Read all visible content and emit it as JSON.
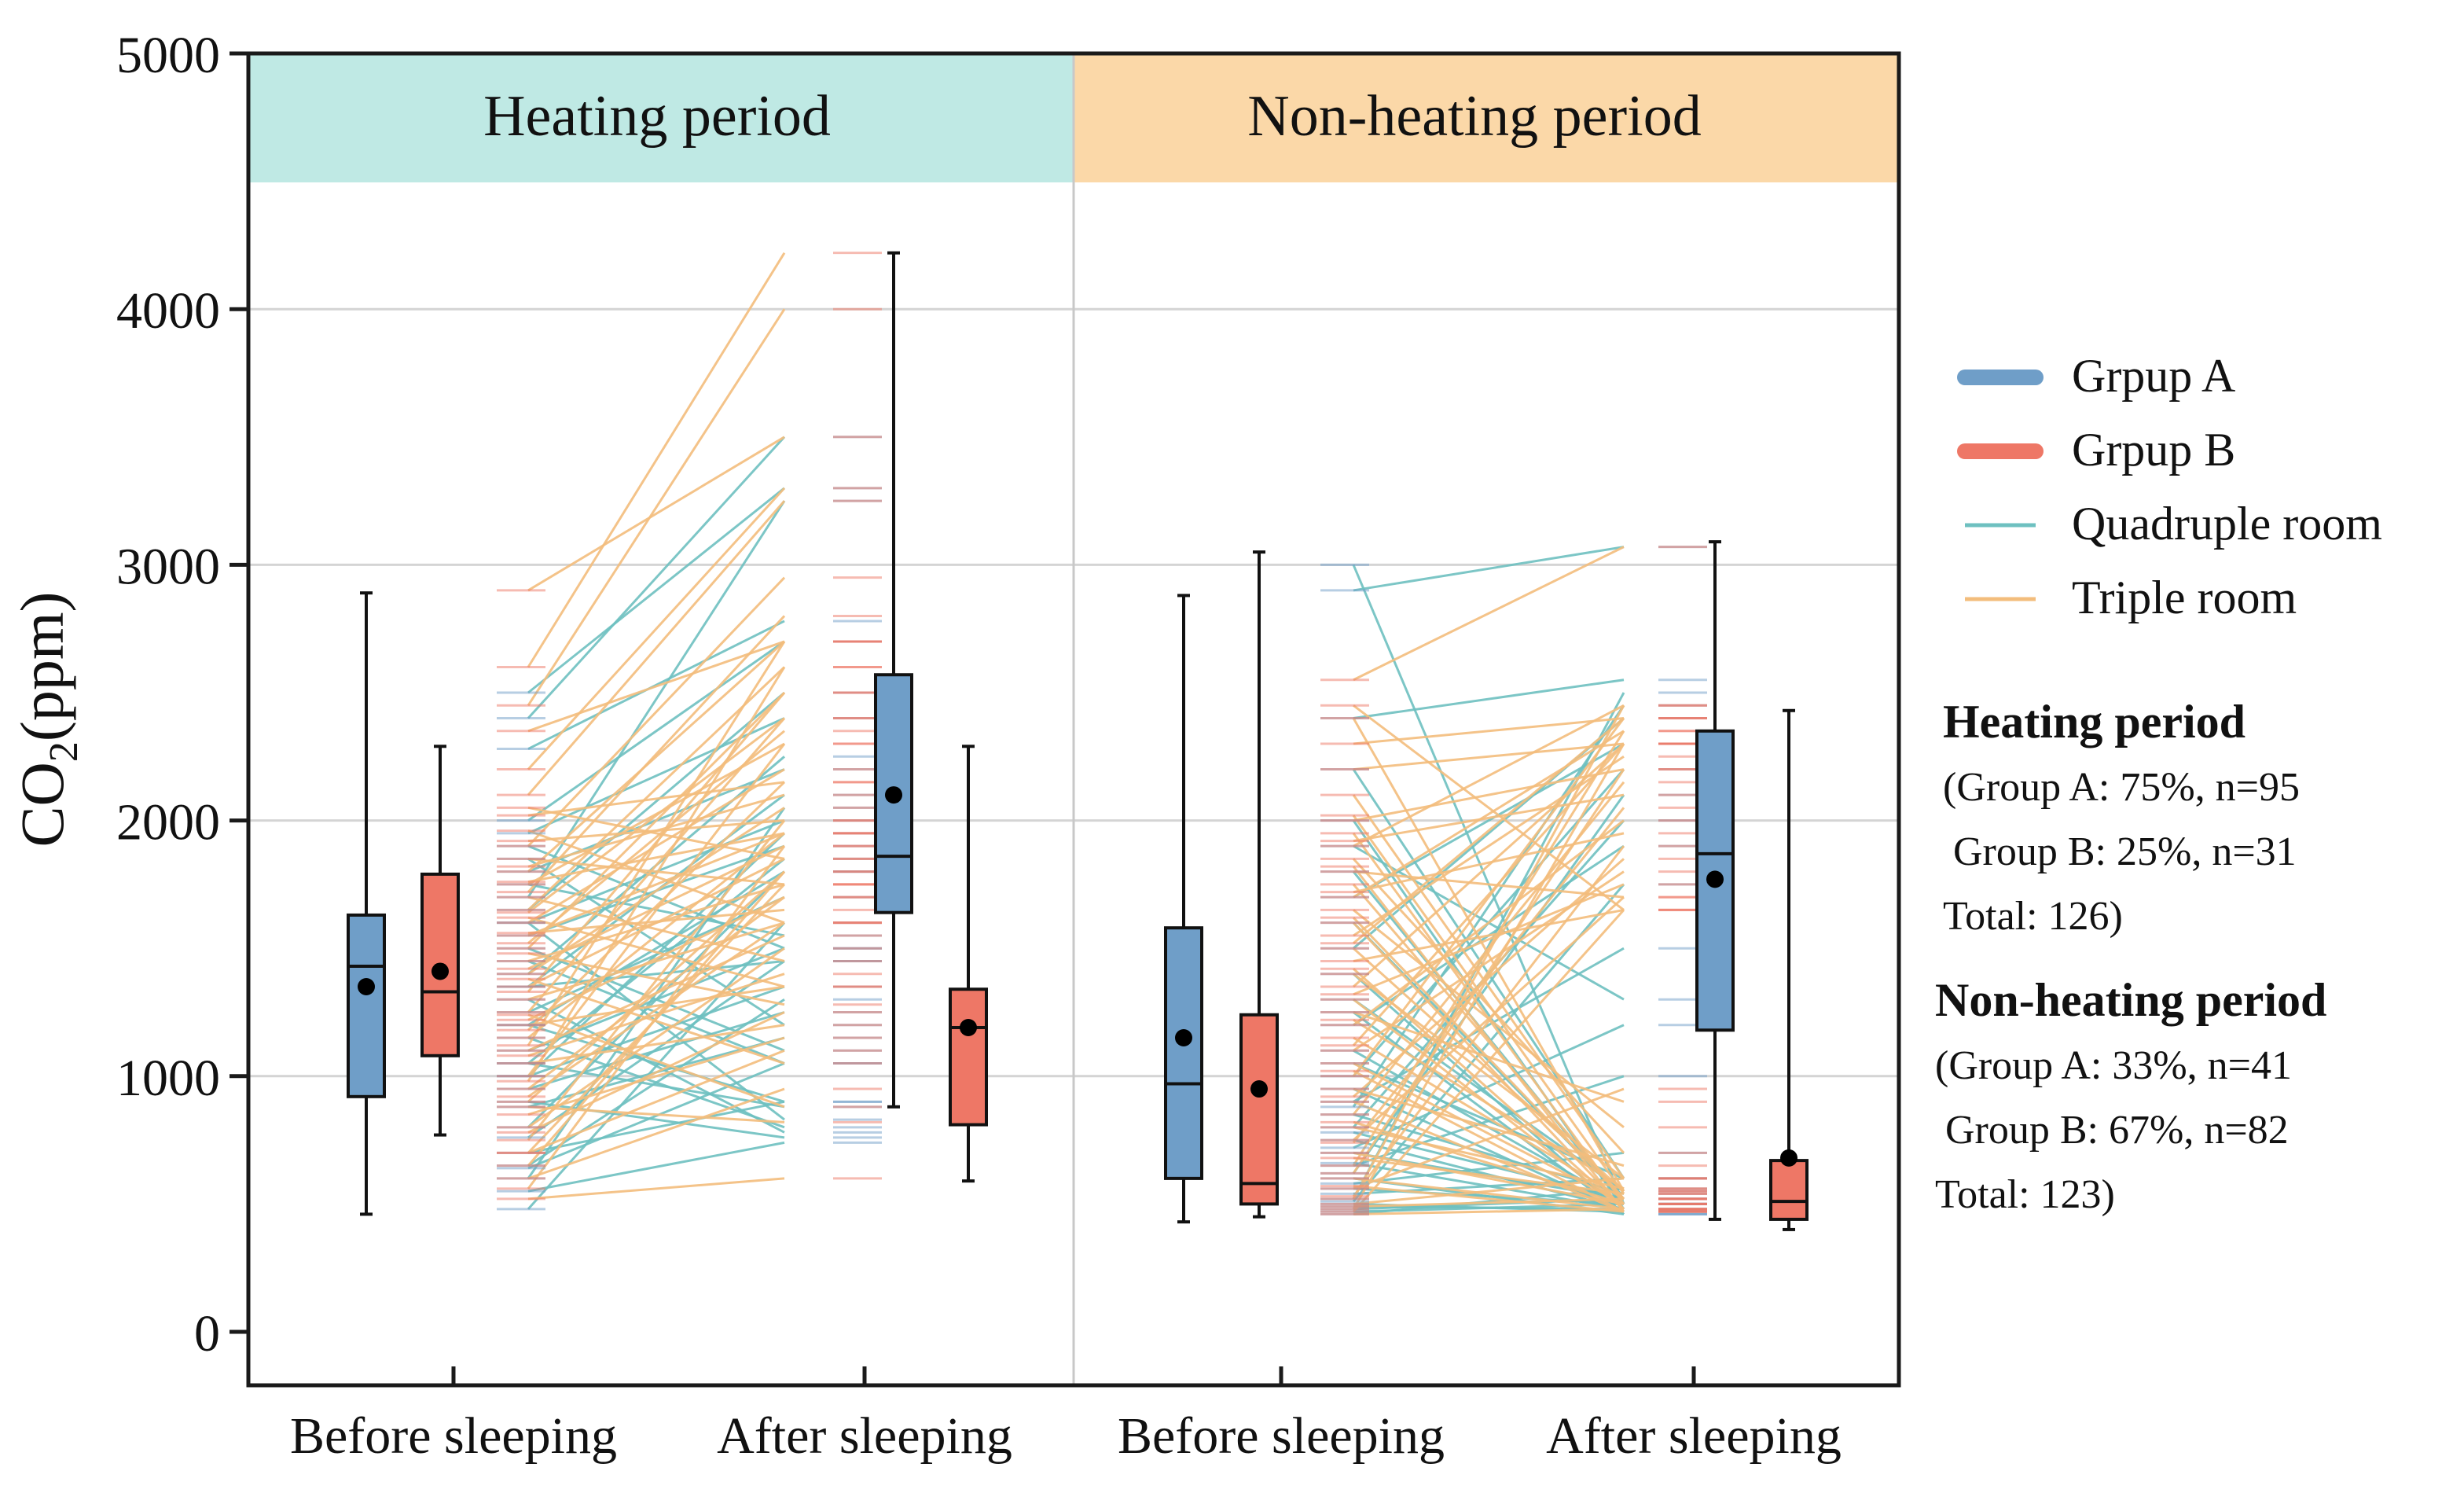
{
  "chart_data": {
    "type": "box",
    "ylabel_main": "CO",
    "ylabel_sub": "2",
    "ylabel_unit": "(ppm)",
    "ylim": [
      0,
      5000
    ],
    "yticks": [
      "0",
      "1000",
      "2000",
      "3000",
      "4000",
      "5000"
    ],
    "grid": true,
    "colors": {
      "group_a": "#6f9ec8",
      "group_b": "#ee7766",
      "quadruple": "#6ec0c0",
      "triple": "#f3bd7c",
      "heating_band": "#bfe9e4",
      "nonheating_band": "#fbd8a8",
      "mean_marker": "#000000"
    },
    "panels": [
      {
        "name": "Heating period",
        "categories": [
          "Before sleeping",
          "After sleeping"
        ],
        "boxes": [
          {
            "category": "Before sleeping",
            "group": "Grpup A",
            "min": 460,
            "q1": 920,
            "median": 1430,
            "q3": 1630,
            "max": 2890,
            "mean": 1350
          },
          {
            "category": "Before sleeping",
            "group": "Grpup B",
            "min": 770,
            "q1": 1080,
            "median": 1330,
            "q3": 1790,
            "max": 2290,
            "mean": 1410
          },
          {
            "category": "After sleeping",
            "group": "Grpup A",
            "min": 880,
            "q1": 1640,
            "median": 1860,
            "q3": 2570,
            "max": 4220,
            "mean": 2100
          },
          {
            "category": "After sleeping",
            "group": "Grpup B",
            "min": 590,
            "q1": 810,
            "median": 1190,
            "q3": 1340,
            "max": 2290,
            "mean": 1190
          }
        ],
        "paired_lines": {
          "quadruple": [
            [
              2280,
              2780
            ],
            [
              1700,
              3250
            ],
            [
              1900,
              1500
            ],
            [
              1500,
              1100
            ],
            [
              1300,
              780
            ],
            [
              1200,
              1800
            ],
            [
              1000,
              1350
            ],
            [
              800,
              1800
            ],
            [
              640,
              1050
            ],
            [
              600,
              2050
            ],
            [
              480,
              1600
            ],
            [
              1400,
              2250
            ],
            [
              1600,
              830
            ],
            [
              900,
              760
            ],
            [
              1100,
              1500
            ],
            [
              2500,
              3300
            ],
            [
              1850,
              1200
            ],
            [
              700,
              900
            ],
            [
              1750,
              1550
            ],
            [
              1350,
              2100
            ],
            [
              1050,
              880
            ],
            [
              1550,
              1900
            ],
            [
              1250,
              1700
            ],
            [
              950,
              1250
            ],
            [
              760,
              1450
            ],
            [
              1650,
              2500
            ],
            [
              2000,
              2700
            ],
            [
              1450,
              1050
            ],
            [
              1150,
              800
            ],
            [
              880,
              1150
            ],
            [
              2400,
              3500
            ],
            [
              1800,
              2200
            ],
            [
              1050,
              1850
            ],
            [
              1200,
              900
            ],
            [
              550,
              740
            ],
            [
              1950,
              2400
            ],
            [
              650,
              1300
            ],
            [
              1600,
              2000
            ],
            [
              1350,
              1450
            ],
            [
              1000,
              1950
            ]
          ],
          "triple": [
            [
              2600,
              4220
            ],
            [
              2900,
              3500
            ],
            [
              2450,
              4000
            ],
            [
              2100,
              3250
            ],
            [
              1900,
              2950
            ],
            [
              1800,
              2700
            ],
            [
              1750,
              2300
            ],
            [
              1700,
              1450
            ],
            [
              1650,
              2600
            ],
            [
              1600,
              2200
            ],
            [
              1550,
              1950
            ],
            [
              1500,
              2500
            ],
            [
              1450,
              1750
            ],
            [
              1400,
              2050
            ],
            [
              1350,
              1850
            ],
            [
              1300,
              1600
            ],
            [
              1250,
              2400
            ],
            [
              1200,
              1350
            ],
            [
              1150,
              1950
            ],
            [
              1100,
              1550
            ],
            [
              1050,
              1200
            ],
            [
              1000,
              2300
            ],
            [
              950,
              1700
            ],
            [
              900,
              1800
            ],
            [
              850,
              1150
            ],
            [
              800,
              1500
            ],
            [
              750,
              2000
            ],
            [
              700,
              1100
            ],
            [
              650,
              1800
            ],
            [
              600,
              950
            ],
            [
              560,
              1900
            ],
            [
              520,
              600
            ],
            [
              1850,
              1750
            ],
            [
              1960,
              1600
            ],
            [
              2050,
              1850
            ],
            [
              1480,
              1280
            ],
            [
              1620,
              1350
            ],
            [
              1720,
              2800
            ],
            [
              1820,
              2100
            ],
            [
              1560,
              1650
            ],
            [
              1380,
              1050
            ],
            [
              1180,
              2150
            ],
            [
              980,
              2600
            ],
            [
              880,
              820
            ],
            [
              780,
              1250
            ],
            [
              2200,
              3300
            ],
            [
              2350,
              2700
            ],
            [
              1920,
              2000
            ],
            [
              1640,
              2400
            ],
            [
              1420,
              1900
            ],
            [
              1220,
              1700
            ],
            [
              1080,
              1400
            ],
            [
              920,
              1600
            ],
            [
              700,
              1750
            ],
            [
              1760,
              1950
            ],
            [
              1330,
              2500
            ],
            [
              1240,
              880
            ],
            [
              1520,
              2350
            ],
            [
              2020,
              2150
            ],
            [
              1120,
              2700
            ]
          ]
        }
      },
      {
        "name": "Non-heating period",
        "categories": [
          "Before sleeping",
          "After sleeping"
        ],
        "boxes": [
          {
            "category": "Before sleeping",
            "group": "Grpup A",
            "min": 430,
            "q1": 600,
            "median": 970,
            "q3": 1580,
            "max": 2880,
            "mean": 1150
          },
          {
            "category": "Before sleeping",
            "group": "Grpup B",
            "min": 450,
            "q1": 500,
            "median": 580,
            "q3": 1240,
            "max": 3050,
            "mean": 950
          },
          {
            "category": "After sleeping",
            "group": "Grpup A",
            "min": 440,
            "q1": 1180,
            "median": 1870,
            "q3": 2350,
            "max": 3090,
            "mean": 1770
          },
          {
            "category": "After sleeping",
            "group": "Grpup B",
            "min": 400,
            "q1": 440,
            "median": 510,
            "q3": 670,
            "max": 2430,
            "mean": 680
          }
        ],
        "paired_lines": {
          "quadruple": [
            [
              2900,
              3070
            ],
            [
              3000,
              500
            ],
            [
              2400,
              2550
            ],
            [
              2200,
              600
            ],
            [
              2000,
              480
            ],
            [
              1900,
              1300
            ],
            [
              1800,
              500
            ],
            [
              1700,
              2300
            ],
            [
              1600,
              520
            ],
            [
              1500,
              2400
            ],
            [
              1400,
              460
            ],
            [
              1300,
              550
            ],
            [
              1200,
              1900
            ],
            [
              1100,
              500
            ],
            [
              1000,
              2200
            ],
            [
              950,
              470
            ],
            [
              900,
              1500
            ],
            [
              850,
              540
            ],
            [
              800,
              2000
            ],
            [
              750,
              480
            ],
            [
              700,
              520
            ],
            [
              650,
              1000
            ],
            [
              600,
              460
            ],
            [
              560,
              500
            ],
            [
              520,
              2500
            ],
            [
              500,
              470
            ],
            [
              480,
              520
            ],
            [
              460,
              560
            ],
            [
              470,
              500
            ],
            [
              490,
              480
            ],
            [
              510,
              1750
            ],
            [
              540,
              600
            ],
            [
              580,
              700
            ],
            [
              620,
              2100
            ],
            [
              660,
              480
            ],
            [
              720,
              1200
            ],
            [
              780,
              520
            ],
            [
              880,
              2450
            ],
            [
              1050,
              600
            ],
            [
              1250,
              460
            ]
          ],
          "triple": [
            [
              2550,
              3070
            ],
            [
              2450,
              1650
            ],
            [
              2400,
              550
            ],
            [
              2300,
              2400
            ],
            [
              2200,
              2300
            ],
            [
              2100,
              600
            ],
            [
              2000,
              2200
            ],
            [
              1950,
              500
            ],
            [
              1900,
              2450
            ],
            [
              1850,
              700
            ],
            [
              1800,
              1700
            ],
            [
              1750,
              520
            ],
            [
              1700,
              2350
            ],
            [
              1650,
              800
            ],
            [
              1600,
              480
            ],
            [
              1550,
              2250
            ],
            [
              1500,
              550
            ],
            [
              1450,
              1650
            ],
            [
              1400,
              600
            ],
            [
              1350,
              2300
            ],
            [
              1300,
              480
            ],
            [
              1250,
              900
            ],
            [
              1200,
              2000
            ],
            [
              1150,
              520
            ],
            [
              1100,
              1800
            ],
            [
              1050,
              500
            ],
            [
              1000,
              2400
            ],
            [
              950,
              650
            ],
            [
              900,
              470
            ],
            [
              850,
              2150
            ],
            [
              800,
              560
            ],
            [
              750,
              1700
            ],
            [
              700,
              500
            ],
            [
              650,
              2350
            ],
            [
              600,
              480
            ],
            [
              560,
              950
            ],
            [
              520,
              2450
            ],
            [
              490,
              520
            ],
            [
              470,
              1650
            ],
            [
              460,
              480
            ],
            [
              480,
              2300
            ],
            [
              500,
              600
            ],
            [
              530,
              1900
            ],
            [
              570,
              470
            ],
            [
              620,
              2200
            ],
            [
              680,
              540
            ],
            [
              740,
              2050
            ],
            [
              820,
              500
            ],
            [
              920,
              1850
            ],
            [
              1020,
              470
            ],
            [
              1120,
              2300
            ],
            [
              1220,
              560
            ],
            [
              1320,
              1750
            ],
            [
              1420,
              480
            ],
            [
              1520,
              2400
            ],
            [
              1620,
              520
            ],
            [
              1720,
              1950
            ],
            [
              1820,
              470
            ],
            [
              1920,
              2100
            ],
            [
              2020,
              540
            ]
          ]
        }
      }
    ]
  },
  "legend": {
    "items": [
      {
        "label": "Grpup A",
        "color": "#6f9ec8",
        "style": "thick"
      },
      {
        "label": "Grpup B",
        "color": "#ee7766",
        "style": "thick"
      },
      {
        "label": "Quadruple room",
        "color": "#6ec0c0",
        "style": "thin"
      },
      {
        "label": "Triple room",
        "color": "#f3bd7c",
        "style": "thin"
      }
    ]
  },
  "notes": {
    "heating": {
      "title": "Heating period",
      "line1": "(Group A: 75%, n=95",
      "line2": " Group B: 25%, n=31",
      "line3": "Total: 126)"
    },
    "nonheating": {
      "title": "Non-heating period",
      "line1": "(Group A: 33%, n=41",
      "line2": " Group B: 67%, n=82",
      "line3": "Total: 123)"
    }
  }
}
